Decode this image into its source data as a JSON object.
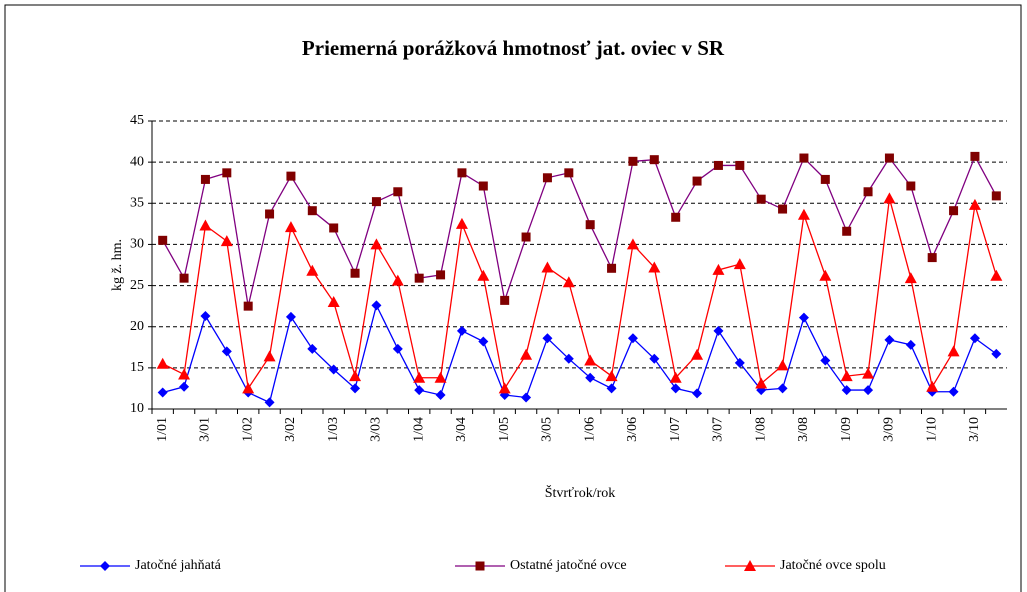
{
  "chart_data": {
    "type": "line",
    "title": "Priemerná porážková hmotnosť jat. oviec v SR",
    "y_label": "kg ž. hm.",
    "x_label": "Štvrťrok/rok",
    "categories": [
      "1/01",
      null,
      "3/01",
      null,
      "1/02",
      null,
      "3/02",
      null,
      "1/03",
      null,
      "3/03",
      null,
      "1/04",
      null,
      "3/04",
      null,
      "1/05",
      null,
      "3/05",
      null,
      "1/06",
      null,
      "3/06",
      null,
      "1/07",
      null,
      "3/07",
      null,
      "1/08",
      null,
      "3/08",
      null,
      "1/09",
      null,
      "3/09",
      null,
      "1/10",
      null,
      "3/10",
      null
    ],
    "ylim": [
      10,
      45
    ],
    "yticks": [
      10,
      15,
      20,
      25,
      30,
      35,
      40,
      45
    ],
    "grid": true,
    "legend": "bottom",
    "series": [
      {
        "name": "Jatočné jahňatá",
        "color": "#0000ff",
        "line_color": "#0000ff",
        "marker": "diamond",
        "values": [
          12,
          12.7,
          21.3,
          17,
          12,
          10.8,
          21.2,
          17.3,
          14.8,
          12.5,
          22.6,
          17.3,
          12.3,
          11.7,
          19.5,
          18.2,
          11.7,
          11.4,
          18.6,
          16.1,
          13.8,
          12.5,
          18.6,
          16.1,
          12.5,
          11.9,
          19.5,
          15.6,
          12.3,
          12.5,
          21.1,
          15.9,
          12.3,
          12.3,
          18.4,
          17.8,
          12.1,
          12.1,
          18.6,
          16.7
        ]
      },
      {
        "name": "Ostatné jatočné ovce",
        "color": "#800000",
        "line_color": "#800080",
        "marker": "square",
        "values": [
          30.5,
          25.9,
          37.9,
          38.7,
          22.5,
          33.7,
          38.3,
          34.1,
          32,
          26.5,
          35.2,
          36.4,
          25.9,
          26.3,
          38.7,
          37.1,
          23.2,
          30.9,
          38.1,
          38.7,
          32.4,
          27.1,
          40.1,
          40.3,
          33.3,
          37.7,
          39.6,
          39.6,
          35.5,
          34.3,
          40.5,
          37.9,
          31.6,
          36.4,
          40.5,
          37.1,
          28.4,
          34.1,
          40.7,
          35.9
        ]
      },
      {
        "name": "Jatočné ovce spolu",
        "color": "#ff0000",
        "line_color": "#ff0000",
        "marker": "triangle",
        "values": [
          15.5,
          14.2,
          32.3,
          30.4,
          12.5,
          16.4,
          32.1,
          26.8,
          23,
          14,
          30,
          25.6,
          13.8,
          13.8,
          32.5,
          26.2,
          12.5,
          16.6,
          27.2,
          25.4,
          15.9,
          14,
          30,
          27.2,
          13.8,
          16.6,
          26.9,
          27.6,
          13.1,
          15.3,
          33.6,
          26.2,
          14,
          14.3,
          35.6,
          25.9,
          12.7,
          17,
          34.8,
          26.2
        ]
      }
    ]
  }
}
